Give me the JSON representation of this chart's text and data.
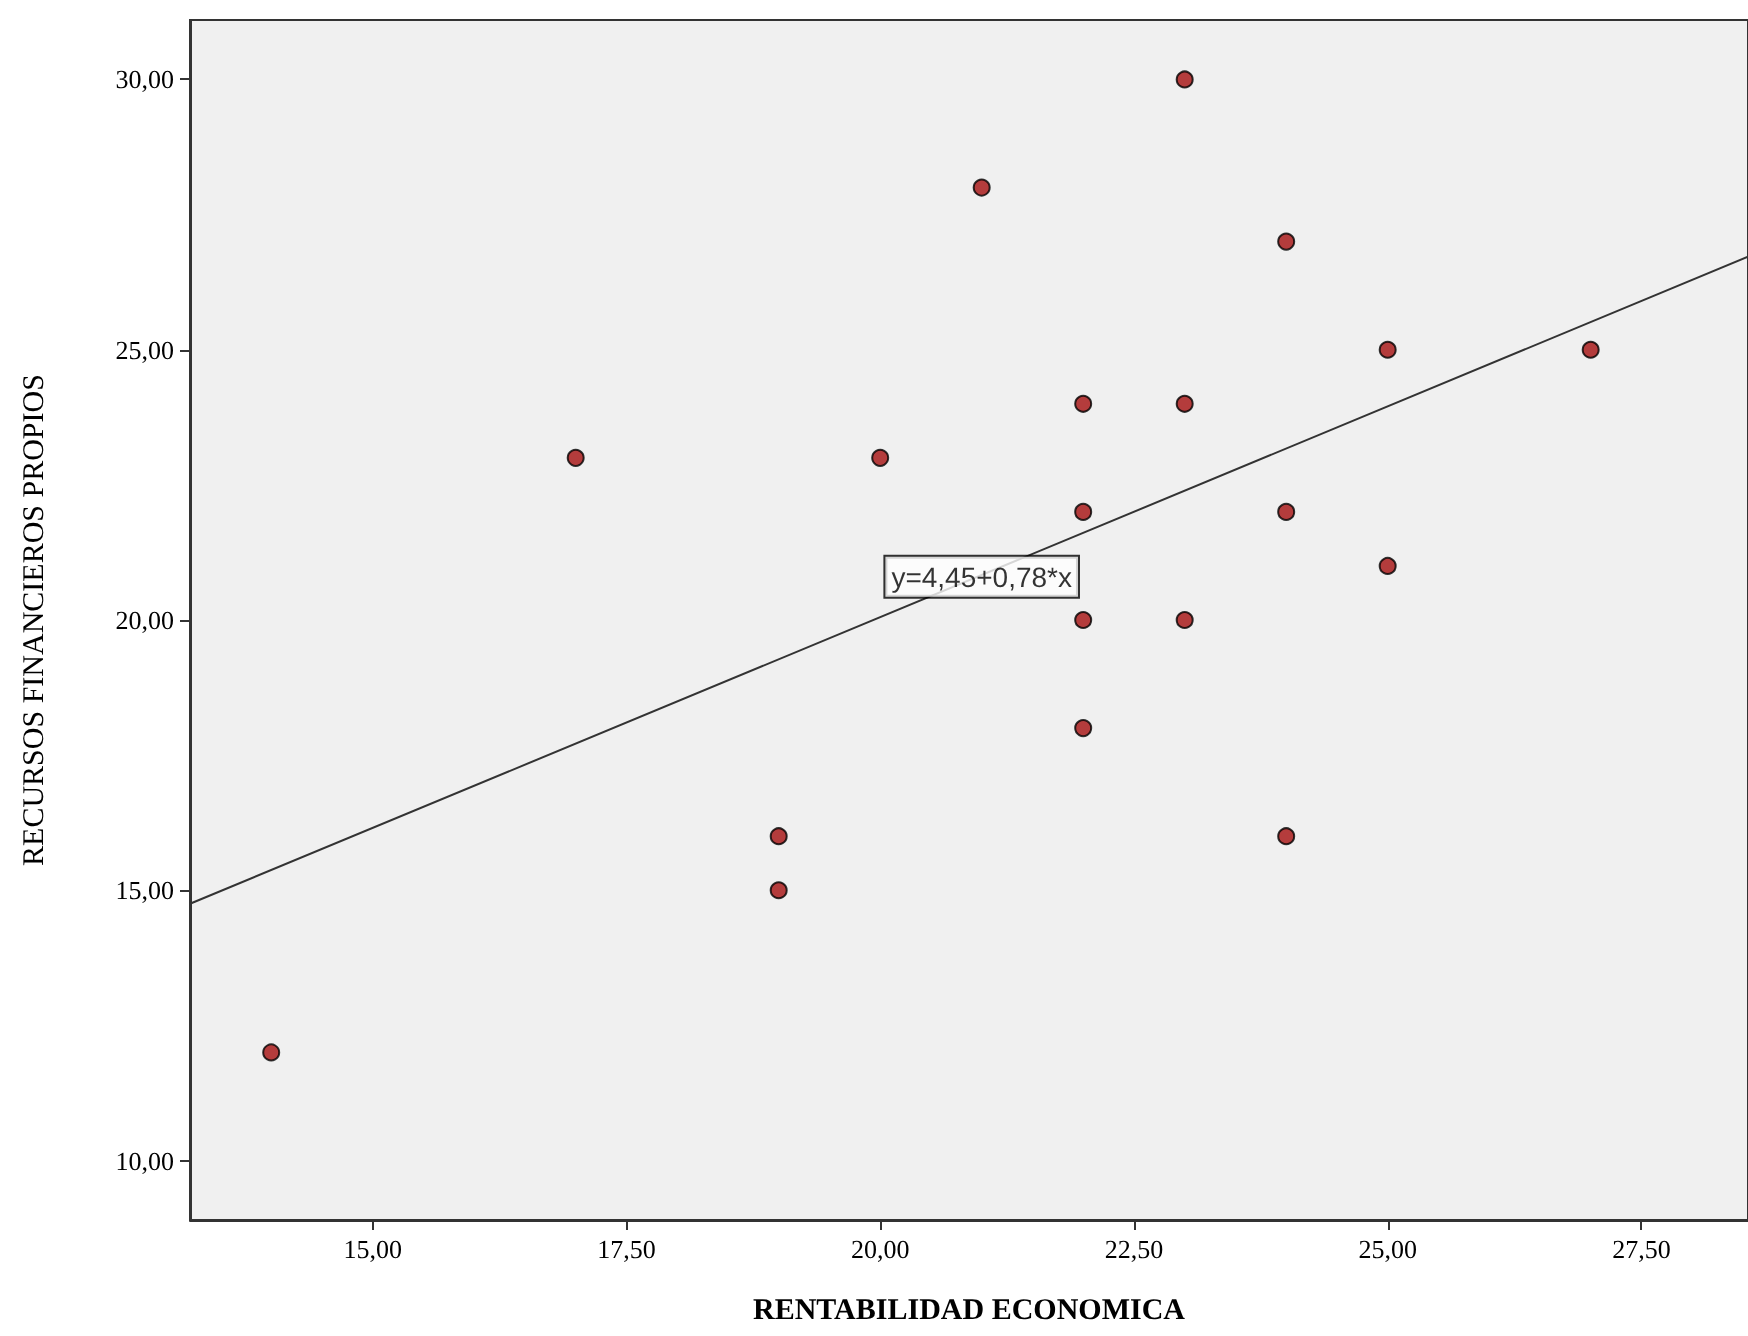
{
  "chart_data": {
    "type": "scatter",
    "xlabel": "RENTABILIDAD ECONOMICA",
    "ylabel": "RECURSOS FINANCIEROS PROPIOS",
    "xlim": [
      13.2,
      28.55
    ],
    "ylim": [
      8.9,
      31.1
    ],
    "xticks": [
      {
        "value": 15,
        "label": "15,00"
      },
      {
        "value": 17.5,
        "label": "17,50"
      },
      {
        "value": 20,
        "label": "20,00"
      },
      {
        "value": 22.5,
        "label": "22,50"
      },
      {
        "value": 25,
        "label": "25,00"
      },
      {
        "value": 27.5,
        "label": "27,50"
      }
    ],
    "yticks": [
      {
        "value": 10,
        "label": "10,00"
      },
      {
        "value": 15,
        "label": "15,00"
      },
      {
        "value": 20,
        "label": "20,00"
      },
      {
        "value": 25,
        "label": "25,00"
      },
      {
        "value": 30,
        "label": "30,00"
      }
    ],
    "grid": false,
    "marker": "circle",
    "series": [
      {
        "color": "#a50f0f",
        "x": [
          14,
          17,
          19,
          19,
          20,
          21,
          22,
          22,
          22,
          22,
          23,
          23,
          23,
          24,
          24,
          24,
          25,
          25,
          27
        ],
        "values": [
          12,
          23,
          16,
          15,
          23,
          28,
          24,
          22,
          20,
          18,
          30,
          24,
          20,
          27,
          22,
          16,
          25,
          21,
          25
        ]
      },
      {
        "type": "line",
        "color": "#333333",
        "x": [
          13.2,
          28.55
        ],
        "values": [
          14.75,
          26.72
        ],
        "marker": "none",
        "line_style": "solid"
      }
    ],
    "annotations": [
      {
        "text": "y=4,45+0,78*x",
        "x": 21,
        "y": 20.8
      }
    ]
  }
}
